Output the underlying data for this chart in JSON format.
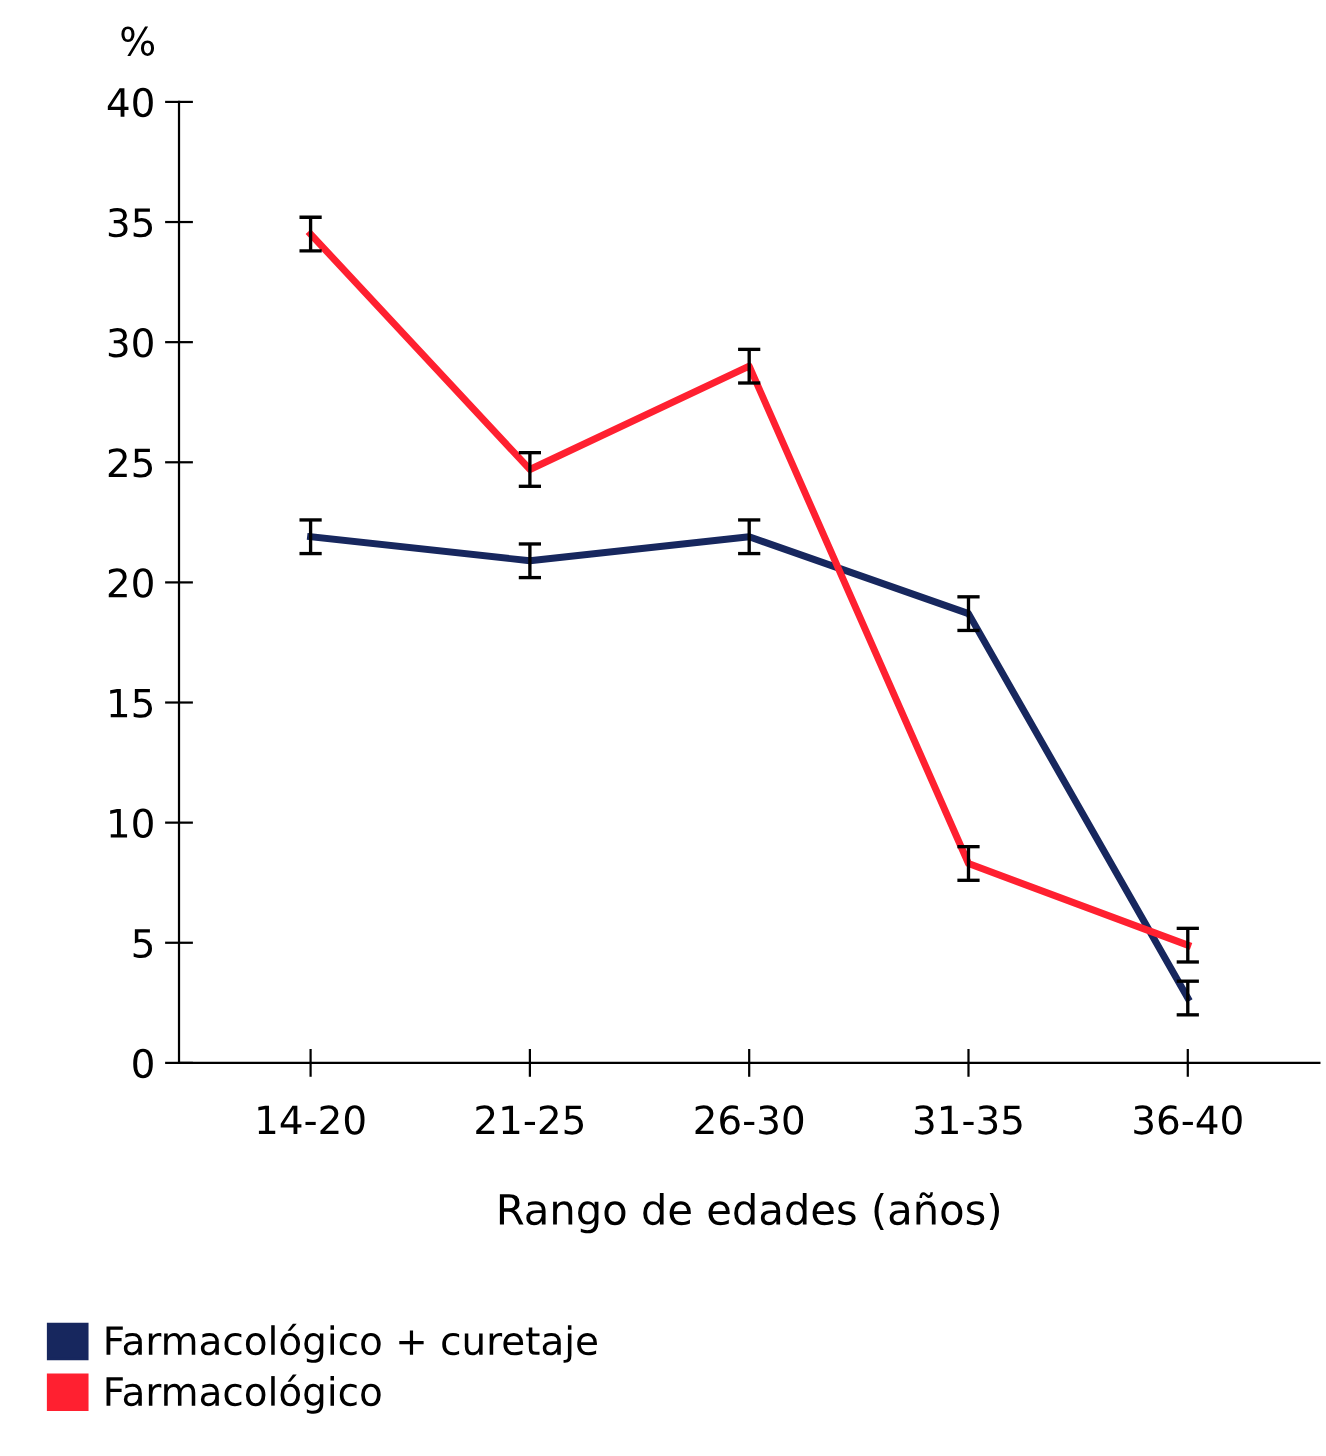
{
  "chart_data": {
    "type": "line",
    "ylabel": "%",
    "xlabel": "Rango de edades (años)",
    "categories": [
      "14-20",
      "21-25",
      "26-30",
      "31-35",
      "36-40"
    ],
    "series": [
      {
        "name": "Farmacológico + curetaje",
        "color": "#17275e",
        "values": [
          21.9,
          20.9,
          21.9,
          18.7,
          2.7
        ],
        "errors": [
          0.7,
          0.7,
          0.7,
          0.7,
          0.7
        ]
      },
      {
        "name": "Farmacológico",
        "color": "#ff2030",
        "values": [
          34.5,
          24.7,
          29.0,
          8.3,
          4.9
        ],
        "errors": [
          0.7,
          0.7,
          0.7,
          0.7,
          0.7
        ]
      }
    ],
    "ylim": [
      0,
      40
    ],
    "yticks": [
      0,
      5,
      10,
      15,
      20,
      25,
      30,
      35,
      40
    ],
    "grid": false,
    "legend": "bottom left",
    "marker": "none",
    "line_style": "solid"
  }
}
